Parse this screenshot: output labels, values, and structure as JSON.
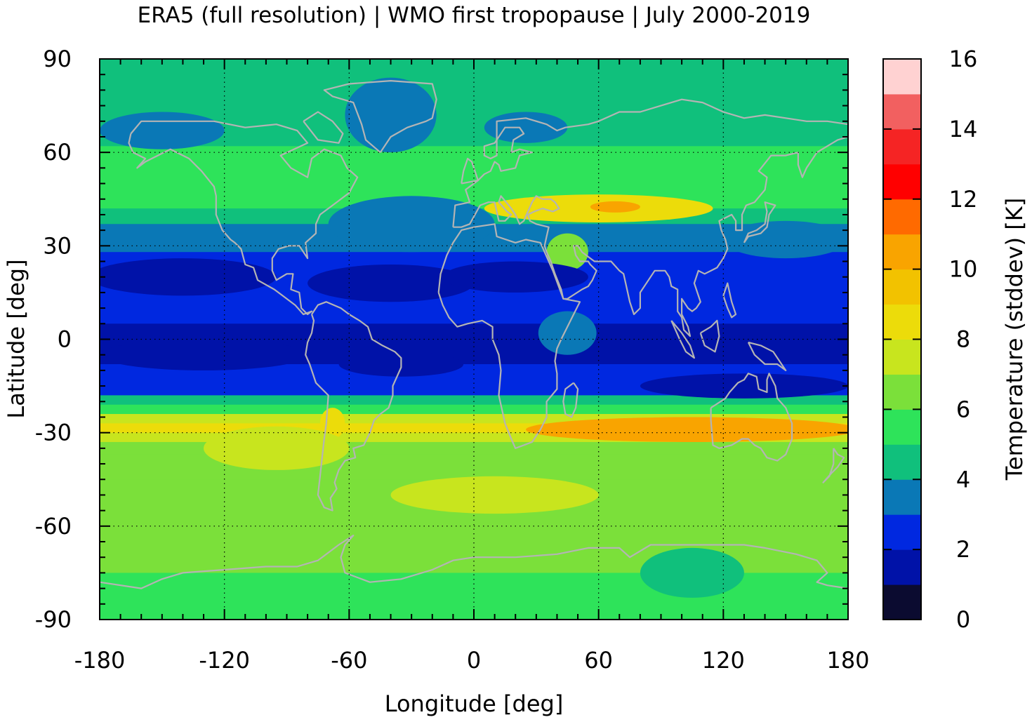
{
  "chart_data": {
    "type": "heatmap",
    "title": "ERA5 (full resolution) | WMO first tropopause | July 2000-2019",
    "xlabel": "Longitude [deg]",
    "ylabel": "Latitude [deg]",
    "colorbar_label": "Temperature (stddev) [K]",
    "xlim": [
      -180,
      180
    ],
    "ylim": [
      -90,
      90
    ],
    "x_ticks": [
      -180,
      -120,
      -60,
      0,
      60,
      120,
      180
    ],
    "y_ticks": [
      90,
      60,
      30,
      0,
      -30,
      -60,
      -90
    ],
    "colorbar_ticks": [
      0,
      2,
      4,
      6,
      8,
      10,
      12,
      14,
      16
    ],
    "colorbar_range": [
      0,
      16
    ],
    "grid": true,
    "colorbar_levels": [
      {
        "from": 0,
        "to": 1,
        "color": "#0b0b30"
      },
      {
        "from": 1,
        "to": 2,
        "color": "#0012a8"
      },
      {
        "from": 2,
        "to": 3,
        "color": "#0028e0"
      },
      {
        "from": 3,
        "to": 4,
        "color": "#0a78b6"
      },
      {
        "from": 4,
        "to": 5,
        "color": "#10c07c"
      },
      {
        "from": 5,
        "to": 6,
        "color": "#2ee35a"
      },
      {
        "from": 6,
        "to": 7,
        "color": "#7be03a"
      },
      {
        "from": 7,
        "to": 8,
        "color": "#c8e51e"
      },
      {
        "from": 8,
        "to": 9,
        "color": "#ecdc0a"
      },
      {
        "from": 9,
        "to": 10,
        "color": "#f2c200"
      },
      {
        "from": 10,
        "to": 11,
        "color": "#f9a400"
      },
      {
        "from": 11,
        "to": 12,
        "color": "#ff6a00"
      },
      {
        "from": 12,
        "to": 13,
        "color": "#ff0000"
      },
      {
        "from": 13,
        "to": 14,
        "color": "#f52424"
      },
      {
        "from": 14,
        "to": 15,
        "color": "#f26060"
      },
      {
        "from": 15,
        "to": 16,
        "color": "#ffd2d2"
      }
    ],
    "zonal_profile": [
      {
        "lat": 90,
        "value": 4.6
      },
      {
        "lat": 80,
        "value": 4.5
      },
      {
        "lat": 70,
        "value": 4.2
      },
      {
        "lat": 62,
        "value": 4.8
      },
      {
        "lat": 55,
        "value": 5.4
      },
      {
        "lat": 48,
        "value": 5.3
      },
      {
        "lat": 42,
        "value": 5.0
      },
      {
        "lat": 37,
        "value": 4.4
      },
      {
        "lat": 33,
        "value": 3.5
      },
      {
        "lat": 28,
        "value": 2.6
      },
      {
        "lat": 20,
        "value": 2.3
      },
      {
        "lat": 12,
        "value": 2.2
      },
      {
        "lat": 5,
        "value": 1.9
      },
      {
        "lat": -2,
        "value": 1.6
      },
      {
        "lat": -8,
        "value": 1.8
      },
      {
        "lat": -14,
        "value": 2.3
      },
      {
        "lat": -18,
        "value": 3.2
      },
      {
        "lat": -21,
        "value": 4.8
      },
      {
        "lat": -24,
        "value": 7.0
      },
      {
        "lat": -27,
        "value": 8.8
      },
      {
        "lat": -30,
        "value": 8.6
      },
      {
        "lat": -33,
        "value": 7.2
      },
      {
        "lat": -37,
        "value": 6.6
      },
      {
        "lat": -45,
        "value": 6.5
      },
      {
        "lat": -55,
        "value": 6.3
      },
      {
        "lat": -65,
        "value": 6.2
      },
      {
        "lat": -75,
        "value": 5.9
      },
      {
        "lat": -85,
        "value": 5.8
      },
      {
        "lat": -90,
        "value": 5.8
      }
    ],
    "features": [
      {
        "lon": 85,
        "lat": -28.5,
        "rlon": 55,
        "rlat": 3.0,
        "value": 11.6
      },
      {
        "lon": 140,
        "lat": -28.5,
        "rlon": 30,
        "rlat": 2.5,
        "value": 11.0
      },
      {
        "lon": 105,
        "lat": -29.0,
        "rlon": 80,
        "rlat": 4.0,
        "value": 10.3
      },
      {
        "lon": 60,
        "lat": 42.0,
        "rlon": 55,
        "rlat": 4.5,
        "value": 8.6
      },
      {
        "lon": 68,
        "lat": 42.5,
        "rlon": 12,
        "rlat": 1.8,
        "value": 10.2
      },
      {
        "lon": 45,
        "lat": 28.0,
        "rlon": 10,
        "rlat": 6.0,
        "value": 6.8
      },
      {
        "lon": -68,
        "lat": -27.0,
        "rlon": 6,
        "rlat": 5.0,
        "value": 8.8
      },
      {
        "lon": -95,
        "lat": -35.0,
        "rlon": 35,
        "rlat": 7.0,
        "value": 7.4
      },
      {
        "lon": -40,
        "lat": 72.0,
        "rlon": 22,
        "rlat": 12.0,
        "value": 3.5
      },
      {
        "lon": -150,
        "lat": 67.0,
        "rlon": 30,
        "rlat": 6.0,
        "value": 3.4
      },
      {
        "lon": 25,
        "lat": 68.0,
        "rlon": 20,
        "rlat": 5.0,
        "value": 3.4
      },
      {
        "lon": -30,
        "lat": 37.0,
        "rlon": 40,
        "rlat": 9.0,
        "value": 3.6
      },
      {
        "lon": -140,
        "lat": 20.0,
        "rlon": 45,
        "rlat": 6.0,
        "value": 1.6
      },
      {
        "lon": -40,
        "lat": 18.0,
        "rlon": 40,
        "rlat": 6.0,
        "value": 1.6
      },
      {
        "lon": 20,
        "lat": 20.0,
        "rlon": 35,
        "rlat": 5.0,
        "value": 1.7
      },
      {
        "lon": -130,
        "lat": -5.0,
        "rlon": 50,
        "rlat": 5.0,
        "value": 1.5
      },
      {
        "lon": -35,
        "lat": -8.0,
        "rlon": 30,
        "rlat": 4.0,
        "value": 1.5
      },
      {
        "lon": 130,
        "lat": -15.0,
        "rlon": 50,
        "rlat": 4.0,
        "value": 1.6
      },
      {
        "lon": 45,
        "lat": 2.0,
        "rlon": 14,
        "rlat": 7.0,
        "value": 3.4
      },
      {
        "lon": 150,
        "lat": 32.0,
        "rlon": 30,
        "rlat": 6.0,
        "value": 3.6
      },
      {
        "lon": 105,
        "lat": -75.0,
        "rlon": 25,
        "rlat": 8.0,
        "value": 4.7
      },
      {
        "lon": 10,
        "lat": -50.0,
        "rlon": 50,
        "rlat": 6.0,
        "value": 7.1
      }
    ]
  }
}
